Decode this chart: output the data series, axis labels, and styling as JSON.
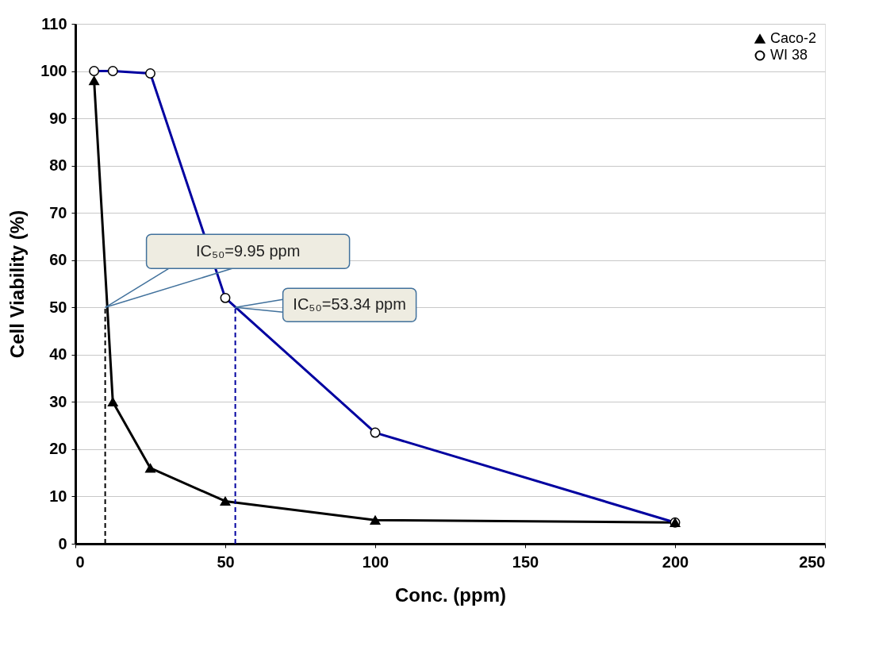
{
  "chart_data": {
    "type": "line",
    "xlabel": "Conc. (ppm)",
    "ylabel": "Cell Viability (%)",
    "x": [
      6.25,
      12.5,
      25,
      50,
      100,
      200
    ],
    "series": [
      {
        "name": "Caco-2",
        "color": "#000000",
        "marker": "triangle",
        "values": [
          98,
          30,
          16,
          9,
          5,
          4.5
        ]
      },
      {
        "name": "WI 38",
        "color": "#0000a0",
        "marker": "circle",
        "values": [
          100,
          100,
          99.5,
          52,
          23.5,
          4.5
        ]
      }
    ],
    "xlim": [
      0,
      250
    ],
    "xticks": [
      0,
      50,
      100,
      150,
      200,
      250
    ],
    "ylim": [
      0,
      110
    ],
    "yticks": [
      0,
      10,
      20,
      30,
      40,
      50,
      60,
      70,
      80,
      90,
      100,
      110
    ],
    "grid": "y",
    "legend": "top right",
    "line_style": "solid",
    "ref_lines": [
      {
        "axis": "x",
        "value": 9.95,
        "color": "#000000",
        "line_style": "dashed"
      },
      {
        "axis": "x",
        "value": 53.34,
        "color": "#0000a0",
        "line_style": "dashed"
      }
    ],
    "annotations": [
      {
        "text": "IC₅₀=9.95 ppm",
        "x": 9.95,
        "y": 50
      },
      {
        "text": "IC₅₀=53.34 ppm",
        "x": 53.34,
        "y": 50
      }
    ]
  }
}
